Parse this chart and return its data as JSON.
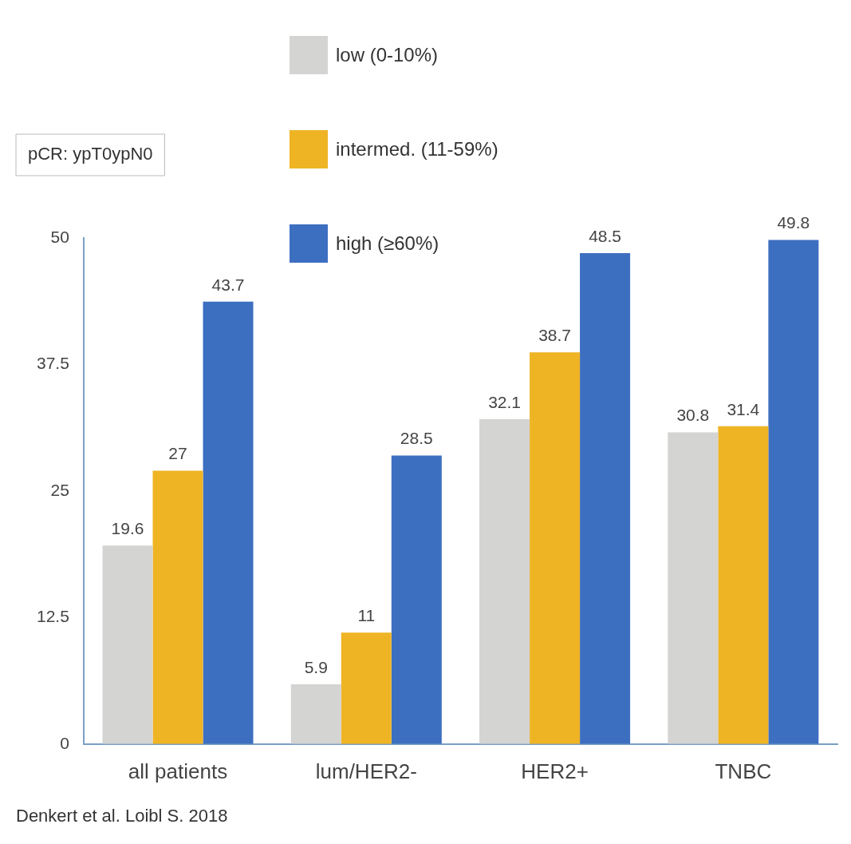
{
  "chart_data": {
    "type": "bar",
    "categories": [
      "all patients",
      "lum/HER2-",
      "HER2+",
      "TNBC"
    ],
    "series": [
      {
        "name": "low (0-10%)",
        "color": "#d4d4d2",
        "values": [
          19.6,
          5.9,
          32.1,
          30.8
        ]
      },
      {
        "name": "intermed. (11-59%)",
        "color": "#efb424",
        "values": [
          27,
          11,
          38.7,
          31.4
        ]
      },
      {
        "name": "high (≥60%)",
        "color": "#3d6fc1",
        "values": [
          43.7,
          28.5,
          48.5,
          49.8
        ]
      }
    ],
    "ylim": [
      0,
      50
    ],
    "yticks": [
      0,
      12.5,
      25,
      37.5,
      50
    ],
    "grid": false,
    "legend": "top",
    "data_labels": true,
    "annotations": [
      "pCR: ypT0ypN0",
      "Denkert et al. Loibl S. 2018"
    ]
  }
}
